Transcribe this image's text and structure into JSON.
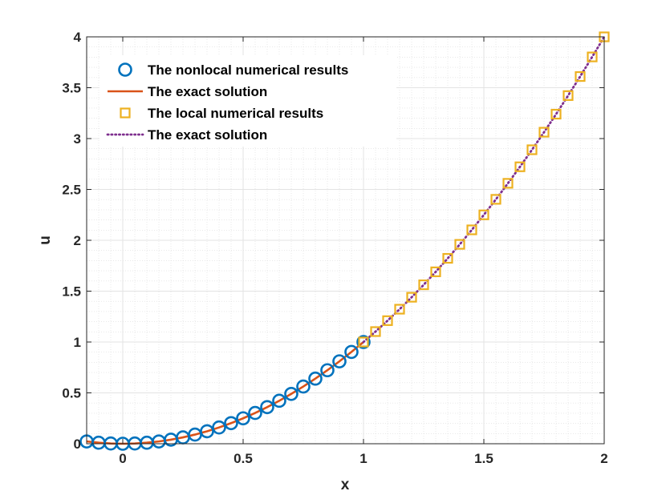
{
  "chart_data": {
    "type": "line",
    "xlabel": "x",
    "ylabel": "u",
    "xlim": [
      -0.15,
      2
    ],
    "ylim": [
      0,
      4
    ],
    "xticks": [
      "0",
      "0.5",
      "1",
      "1.5",
      "2"
    ],
    "yticks": [
      "0",
      "0.5",
      "1",
      "1.5",
      "2",
      "2.5",
      "3",
      "3.5",
      "4"
    ],
    "grid": true,
    "minor_grid": true,
    "legend_position": "top-left",
    "series": [
      {
        "name": "The nonlocal numerical results",
        "style": "circle-markers",
        "color": "#0072BD",
        "x": [
          -0.15,
          -0.1,
          -0.05,
          0,
          0.05,
          0.1,
          0.15,
          0.2,
          0.25,
          0.3,
          0.35,
          0.4,
          0.45,
          0.5,
          0.55,
          0.6,
          0.65,
          0.7,
          0.75,
          0.8,
          0.85,
          0.9,
          0.95,
          1.0
        ],
        "y": [
          0.0225,
          0.01,
          0.0025,
          0,
          0.0025,
          0.01,
          0.0225,
          0.04,
          0.0625,
          0.09,
          0.1225,
          0.16,
          0.2025,
          0.25,
          0.3025,
          0.36,
          0.4225,
          0.49,
          0.5625,
          0.64,
          0.7225,
          0.81,
          0.9025,
          1.0
        ]
      },
      {
        "name": "The exact solution",
        "style": "solid-line",
        "color": "#D95319",
        "x": [
          -0.15,
          -0.1,
          -0.05,
          0,
          0.05,
          0.1,
          0.15,
          0.2,
          0.25,
          0.3,
          0.35,
          0.4,
          0.45,
          0.5,
          0.55,
          0.6,
          0.65,
          0.7,
          0.75,
          0.8,
          0.85,
          0.9,
          0.95,
          1.0
        ],
        "y": [
          0.0225,
          0.01,
          0.0025,
          0,
          0.0025,
          0.01,
          0.0225,
          0.04,
          0.0625,
          0.09,
          0.1225,
          0.16,
          0.2025,
          0.25,
          0.3025,
          0.36,
          0.4225,
          0.49,
          0.5625,
          0.64,
          0.7225,
          0.81,
          0.9025,
          1.0
        ]
      },
      {
        "name": "The local numerical results",
        "style": "square-markers",
        "color": "#EDB120",
        "x": [
          1.0,
          1.05,
          1.1,
          1.15,
          1.2,
          1.25,
          1.3,
          1.35,
          1.4,
          1.45,
          1.5,
          1.55,
          1.6,
          1.65,
          1.7,
          1.75,
          1.8,
          1.85,
          1.9,
          1.95,
          2.0
        ],
        "y": [
          1.0,
          1.1025,
          1.21,
          1.3225,
          1.44,
          1.5625,
          1.69,
          1.8225,
          1.96,
          2.1025,
          2.25,
          2.4025,
          2.56,
          2.7225,
          2.89,
          3.0625,
          3.24,
          3.4225,
          3.61,
          3.8025,
          4.0
        ]
      },
      {
        "name": "The exact solution",
        "style": "dotted-line",
        "color": "#7E2F8E",
        "x": [
          1.0,
          1.05,
          1.1,
          1.15,
          1.2,
          1.25,
          1.3,
          1.35,
          1.4,
          1.45,
          1.5,
          1.55,
          1.6,
          1.65,
          1.7,
          1.75,
          1.8,
          1.85,
          1.9,
          1.95,
          2.0
        ],
        "y": [
          1.0,
          1.1025,
          1.21,
          1.3225,
          1.44,
          1.5625,
          1.69,
          1.8225,
          1.96,
          2.1025,
          2.25,
          2.4025,
          2.56,
          2.7225,
          2.89,
          3.0625,
          3.24,
          3.4225,
          3.61,
          3.8025,
          4.0
        ]
      }
    ]
  }
}
